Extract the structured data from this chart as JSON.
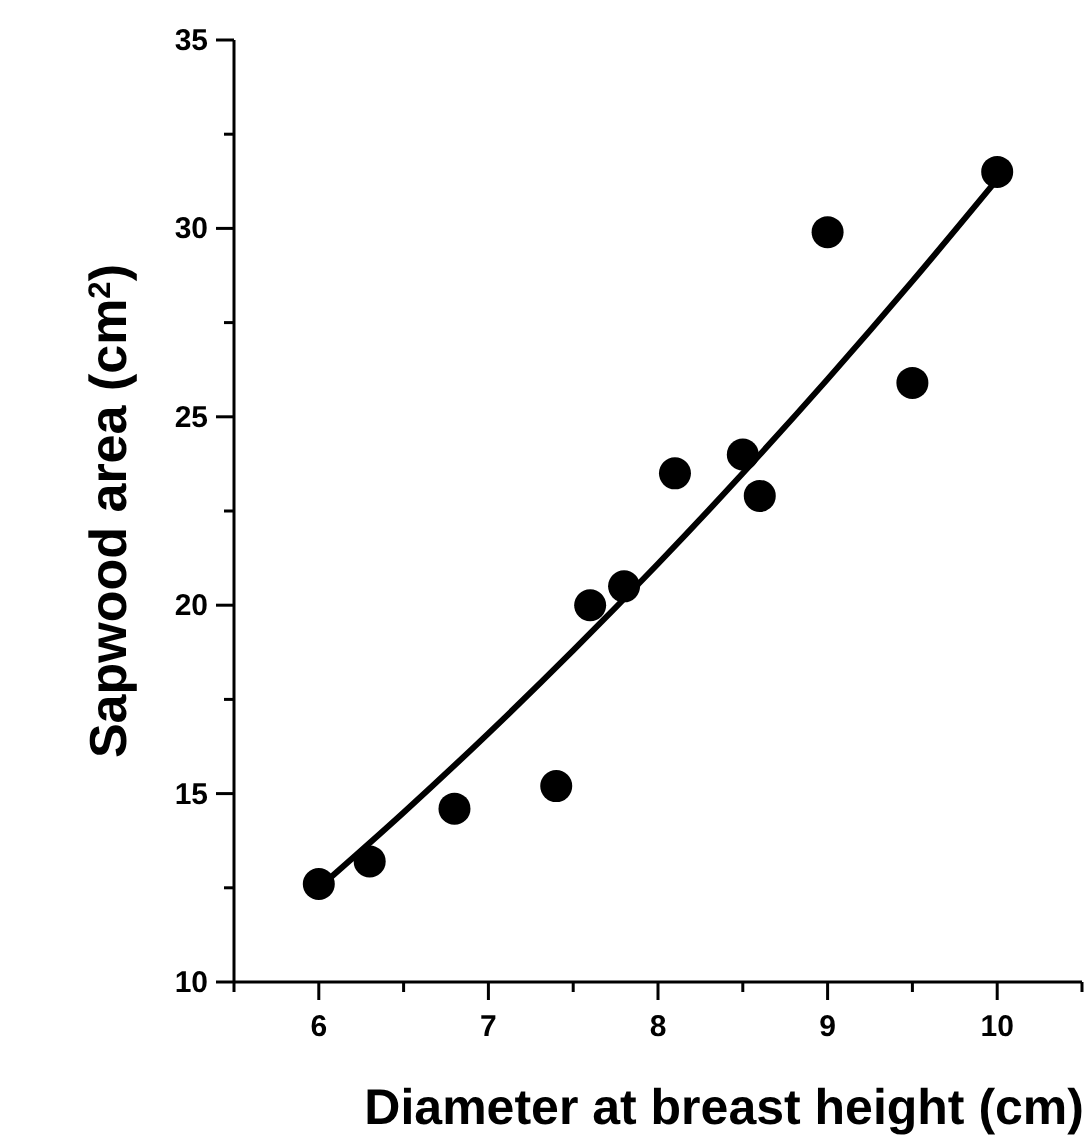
{
  "chart_data": {
    "type": "scatter",
    "xlabel": "Diameter at breast height (cm)",
    "ylabel": "Sapwood area (cm$^{2}$)",
    "xlim": [
      5.5,
      10.5
    ],
    "xticks": [
      {
        "value": 5.5,
        "label": null
      },
      6,
      {
        "value": 6.5,
        "label": null
      },
      7,
      {
        "value": 7.5,
        "label": null
      },
      8,
      {
        "value": 8.5,
        "label": null
      },
      9,
      {
        "value": 9.5,
        "label": null
      },
      10,
      {
        "value": 10.5,
        "label": null
      }
    ],
    "ylim": [
      10,
      35
    ],
    "yticks": [
      10,
      {
        "value": 12.5,
        "label": null
      },
      15,
      {
        "value": 17.5,
        "label": null
      },
      20,
      {
        "value": 22.5,
        "label": null
      },
      25,
      {
        "value": 27.5,
        "label": null
      },
      30,
      {
        "value": 32.5,
        "label": null
      },
      35
    ],
    "grid": false,
    "series": [
      {
        "marker": "circle",
        "color": "#000000",
        "x": [
          6,
          6.3,
          6.8,
          7.4,
          7.6,
          7.8,
          8.1,
          8.5,
          8.6,
          9,
          9.5,
          10
        ],
        "values": [
          12.6,
          13.2,
          14.6,
          15.2,
          20,
          20.5,
          23.5,
          24,
          22.9,
          29.9,
          25.9,
          31.5
        ]
      },
      {
        "type": "line",
        "color": "#000000",
        "x": [
          6,
          6.5,
          7,
          7.5,
          8,
          8.5,
          9,
          9.5,
          10
        ],
        "values": [
          12.5,
          14.5,
          16.6,
          18.8,
          21.1,
          23.5,
          26,
          28.6,
          31.3
        ]
      }
    ]
  }
}
